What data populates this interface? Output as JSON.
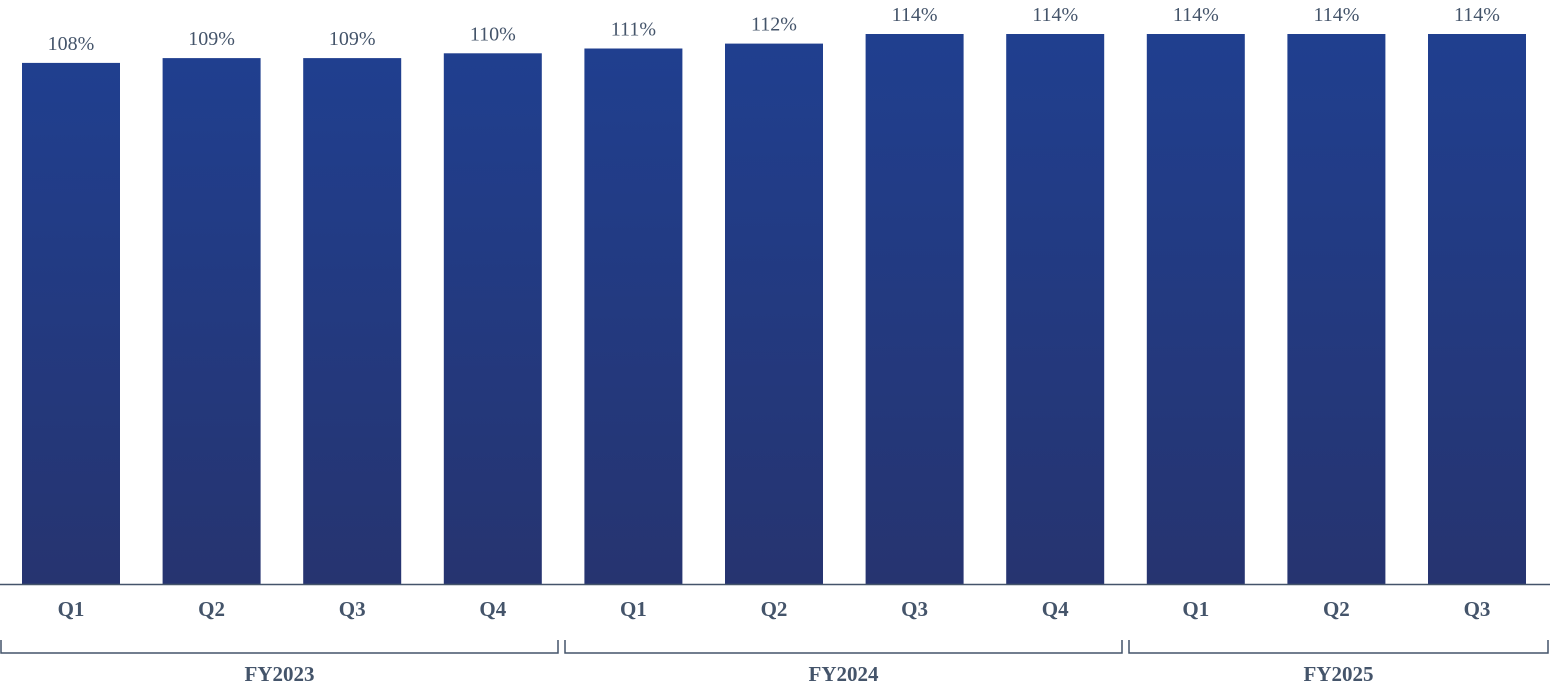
{
  "chart_data": {
    "type": "bar",
    "title": "",
    "xlabel": "",
    "ylabel": "",
    "categories": [
      "Q1",
      "Q2",
      "Q3",
      "Q4",
      "Q1",
      "Q2",
      "Q3",
      "Q4",
      "Q1",
      "Q2",
      "Q3"
    ],
    "values": [
      108,
      109,
      109,
      110,
      111,
      112,
      114,
      114,
      114,
      114,
      114
    ],
    "value_labels": [
      "108%",
      "109%",
      "109%",
      "110%",
      "111%",
      "112%",
      "114%",
      "114%",
      "114%",
      "114%",
      "114%"
    ],
    "groups": [
      {
        "label": "FY2023",
        "start": 0,
        "end": 3
      },
      {
        "label": "FY2024",
        "start": 4,
        "end": 7
      },
      {
        "label": "FY2025",
        "start": 8,
        "end": 10
      }
    ],
    "unit": "%",
    "ylim": [
      0,
      114
    ],
    "grid": false,
    "legend": "none",
    "colors": {
      "bar_top": "#203f8f",
      "bar_bottom": "#263470",
      "axis": "#44546a",
      "text": "#44546a"
    }
  }
}
